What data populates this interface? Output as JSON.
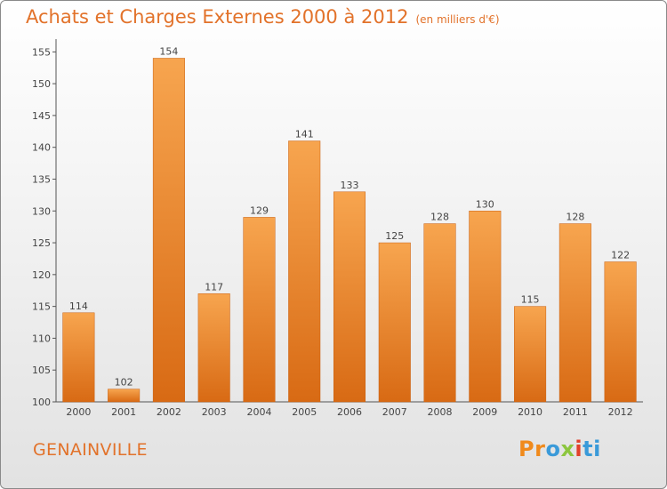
{
  "header": {
    "title": "Achats et Charges Externes 2000 à 2012",
    "unit": "(en milliers d'€)"
  },
  "commune": "GENAINVILLE",
  "logo": {
    "text": "Proxiti",
    "parts": [
      "Pr",
      "o",
      "x",
      "i",
      "ti"
    ]
  },
  "colors": {
    "bar_top": "#f7a54f",
    "bar_bottom": "#d86a14",
    "title": "#e2722a",
    "axis": "#555555"
  },
  "chart_data": {
    "type": "bar",
    "categories": [
      "2000",
      "2001",
      "2002",
      "2003",
      "2004",
      "2005",
      "2006",
      "2007",
      "2008",
      "2009",
      "2010",
      "2011",
      "2012"
    ],
    "values": [
      114,
      102,
      154,
      117,
      129,
      141,
      133,
      125,
      128,
      130,
      115,
      128,
      122
    ],
    "yticks": [
      "100",
      "105",
      "110",
      "115",
      "120",
      "125",
      "130",
      "135",
      "140",
      "145",
      "150",
      "155"
    ],
    "ylim": [
      100,
      157
    ],
    "grid": false,
    "legend": "none"
  }
}
